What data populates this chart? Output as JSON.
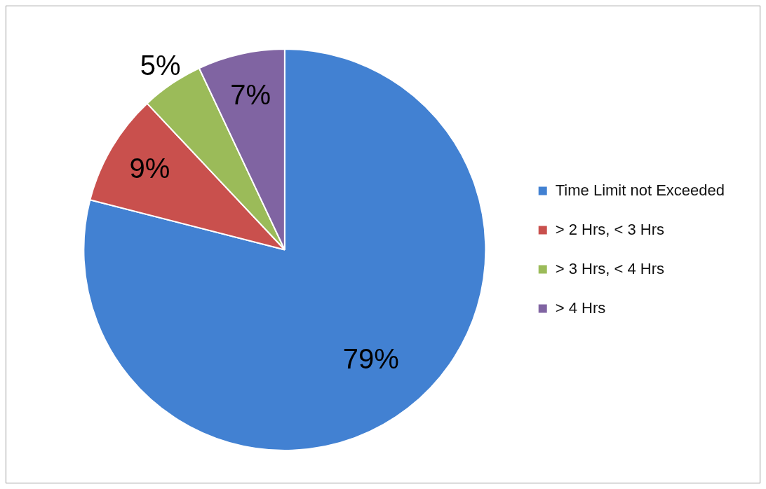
{
  "chart_data": {
    "type": "pie",
    "categories": [
      "Time Limit not Exceeded",
      "> 2 Hrs, < 3 Hrs",
      "> 3 Hrs, < 4 Hrs",
      "> 4 Hrs"
    ],
    "values": [
      79,
      9,
      5,
      7
    ],
    "colors": [
      "#4281d2",
      "#c9504d",
      "#9bbb59",
      "#8064a2"
    ],
    "value_labels": [
      "79%",
      "9%",
      "5%",
      "7%"
    ],
    "legend": "right"
  }
}
